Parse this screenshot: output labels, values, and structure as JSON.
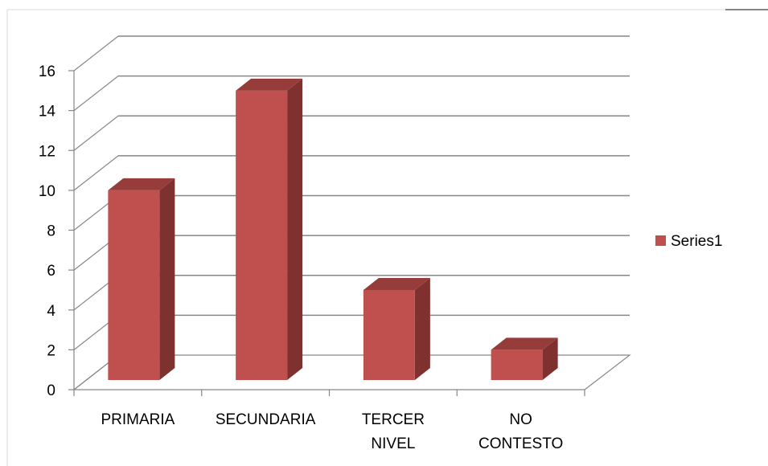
{
  "chart_data": {
    "type": "bar",
    "categories": [
      "PRIMARIA",
      "SECUNDARIA",
      "TERCER NIVEL",
      "NO CONTESTO"
    ],
    "category_lines": [
      [
        "PRIMARIA"
      ],
      [
        "SECUNDARIA"
      ],
      [
        "TERCER",
        "NIVEL"
      ],
      [
        "NO",
        "CONTESTO"
      ]
    ],
    "series": [
      {
        "name": "Series1",
        "values": [
          10,
          15,
          5,
          2
        ]
      }
    ],
    "ylim": [
      0,
      16
    ],
    "yticks": [
      "0",
      "2",
      "4",
      "6",
      "8",
      "10",
      "12",
      "14",
      "16"
    ],
    "title": "",
    "xlabel": "",
    "ylabel": "",
    "grid": true,
    "three_d": true,
    "legend_position": "right",
    "colors": {
      "bar_front": "#c0504d",
      "bar_side": "#7f312f",
      "bar_top": "#963d3b",
      "gridline": "#868686",
      "axis": "#868686",
      "text": "#000000",
      "frame": "#d9d9d9"
    }
  }
}
